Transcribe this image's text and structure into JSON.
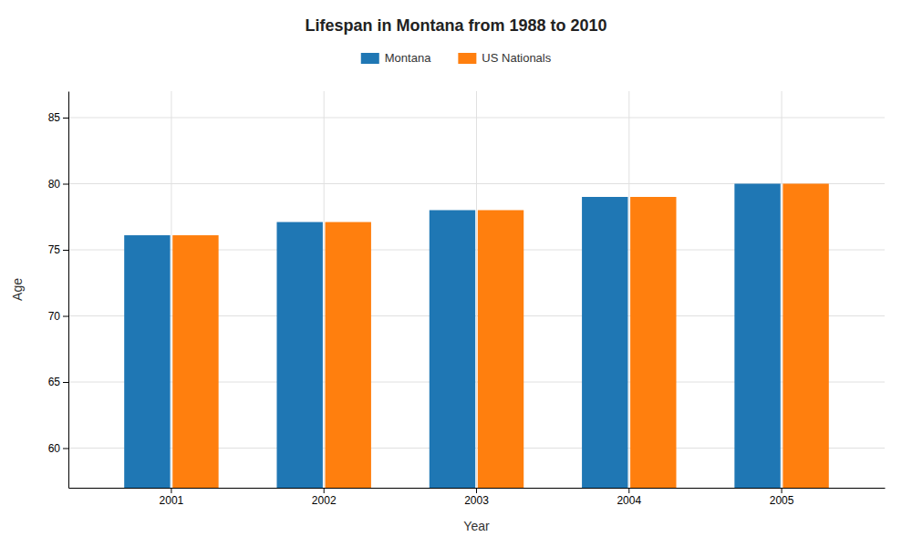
{
  "chart_data": {
    "type": "bar",
    "title": "Lifespan in Montana from 1988 to 2010",
    "xlabel": "Year",
    "ylabel": "Age",
    "categories": [
      "2001",
      "2002",
      "2003",
      "2004",
      "2005"
    ],
    "series": [
      {
        "name": "Montana",
        "values": [
          76.1,
          77.1,
          78.0,
          79.0,
          80.0
        ]
      },
      {
        "name": "US Nationals",
        "values": [
          76.1,
          77.1,
          78.0,
          79.0,
          80.0
        ]
      }
    ],
    "ylim": [
      57,
      87
    ],
    "yticks": [
      60,
      65,
      70,
      75,
      80,
      85
    ],
    "grid": true,
    "legend": "top"
  }
}
